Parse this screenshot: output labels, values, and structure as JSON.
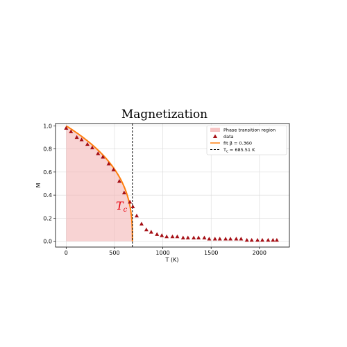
{
  "chart_data": {
    "type": "scatter",
    "title": "Magnetization",
    "xlabel": "T (K)",
    "ylabel": "M",
    "xlim": [
      -110,
      2310
    ],
    "ylim": [
      -0.05,
      1.02
    ],
    "x_ticks": [
      0,
      500,
      1000,
      1500,
      2000
    ],
    "y_ticks": [
      0.0,
      0.2,
      0.4,
      0.6,
      0.8,
      1.0
    ],
    "x_tick_labels": [
      "0",
      "500",
      "1000",
      "1500",
      "2000"
    ],
    "y_tick_labels": [
      "0.0",
      "0.2",
      "0.4",
      "0.6",
      "0.8",
      "1.0"
    ],
    "grid": true,
    "legend_position": "top-right",
    "critical_temperature": 685.51,
    "beta": 0.36,
    "annotation": "T_c",
    "series": [
      {
        "name": "data",
        "kind": "scatter",
        "marker": "triangle",
        "color": "#a50f15",
        "x": [
          0,
          50,
          110,
          160,
          220,
          270,
          330,
          380,
          440,
          490,
          550,
          600,
          660,
          690,
          730,
          780,
          830,
          880,
          940,
          990,
          1040,
          1100,
          1150,
          1210,
          1260,
          1320,
          1370,
          1430,
          1480,
          1540,
          1590,
          1650,
          1700,
          1760,
          1810,
          1870,
          1920,
          1980,
          2030,
          2090,
          2140,
          2180
        ],
        "y": [
          0.98,
          0.95,
          0.9,
          0.88,
          0.84,
          0.81,
          0.76,
          0.73,
          0.67,
          0.62,
          0.52,
          0.42,
          0.34,
          0.3,
          0.22,
          0.15,
          0.1,
          0.08,
          0.06,
          0.05,
          0.04,
          0.04,
          0.04,
          0.03,
          0.03,
          0.03,
          0.03,
          0.03,
          0.02,
          0.02,
          0.02,
          0.02,
          0.02,
          0.02,
          0.02,
          0.01,
          0.01,
          0.01,
          0.01,
          0.01,
          0.01,
          0.01
        ]
      },
      {
        "name": "fit  β = 0.360",
        "kind": "line",
        "color": "#ff7f0e"
      },
      {
        "name": "T_c = 685.51 K",
        "kind": "vline",
        "color": "#000000",
        "x": 685.51
      },
      {
        "name": "Phase transition region",
        "kind": "area",
        "color": "#f4b6b6"
      }
    ]
  }
}
